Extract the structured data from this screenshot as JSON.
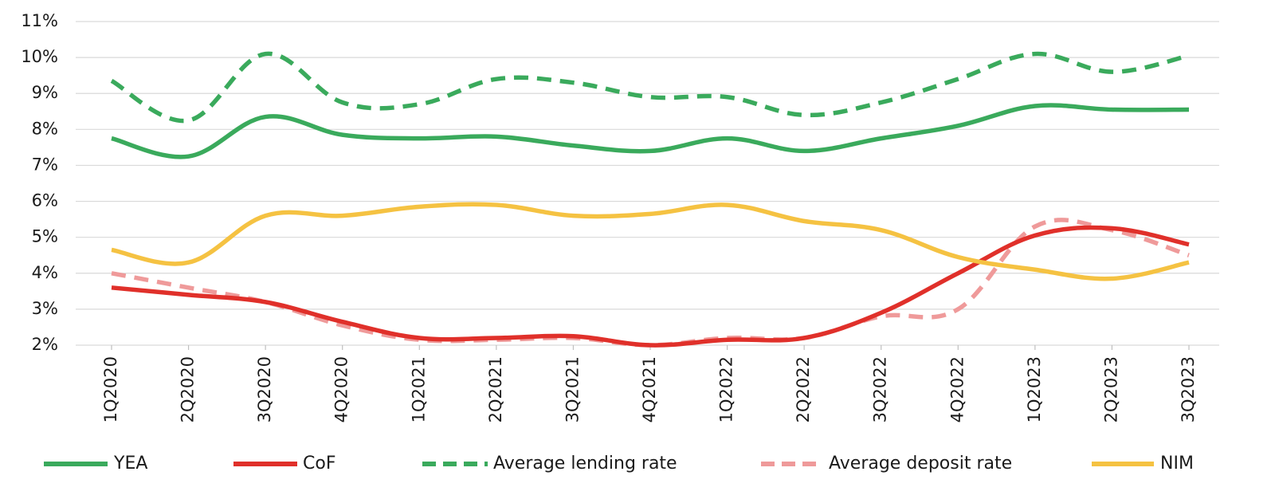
{
  "chart_data": {
    "type": "line",
    "x": [
      "1Q2020",
      "2Q2020",
      "3Q2020",
      "4Q2020",
      "1Q2021",
      "2Q2021",
      "3Q2021",
      "4Q2021",
      "1Q2022",
      "2Q2022",
      "3Q2022",
      "4Q2022",
      "1Q2023",
      "2Q2023",
      "3Q2023"
    ],
    "y_ticks": [
      "2%",
      "3%",
      "4%",
      "5%",
      "6%",
      "7%",
      "8%",
      "9%",
      "10%",
      "11%"
    ],
    "ylim": [
      2,
      11
    ],
    "grid": true,
    "legend_position": "bottom",
    "series": [
      {
        "name": "YEA",
        "color": "#3aaa5c",
        "style": "solid",
        "values": [
          7.75,
          7.25,
          8.35,
          7.85,
          7.75,
          7.8,
          7.55,
          7.4,
          7.75,
          7.4,
          7.75,
          8.1,
          8.65,
          8.55,
          8.55
        ]
      },
      {
        "name": "CoF",
        "color": "#e0302a",
        "style": "solid",
        "values": [
          3.6,
          3.4,
          3.2,
          2.65,
          2.2,
          2.2,
          2.25,
          2.0,
          2.15,
          2.2,
          2.9,
          4.0,
          5.05,
          5.25,
          4.8
        ]
      },
      {
        "name": "Average lending rate",
        "color": "#3aaa5c",
        "style": "dashed",
        "values": [
          9.35,
          8.25,
          10.1,
          8.75,
          8.7,
          9.4,
          9.3,
          8.9,
          8.9,
          8.4,
          8.75,
          9.4,
          10.1,
          9.6,
          10.05
        ]
      },
      {
        "name": "Average deposit rate",
        "color": "#ef9a9a",
        "style": "dashed",
        "values": [
          4.0,
          3.6,
          3.2,
          2.55,
          2.15,
          2.15,
          2.2,
          2.0,
          2.2,
          2.2,
          2.8,
          3.0,
          5.3,
          5.2,
          4.5
        ]
      },
      {
        "name": "NIM",
        "color": "#f5c242",
        "style": "solid",
        "values": [
          4.65,
          4.3,
          5.6,
          5.6,
          5.85,
          5.9,
          5.6,
          5.65,
          5.9,
          5.45,
          5.2,
          4.45,
          4.1,
          3.85,
          4.3
        ]
      }
    ]
  }
}
